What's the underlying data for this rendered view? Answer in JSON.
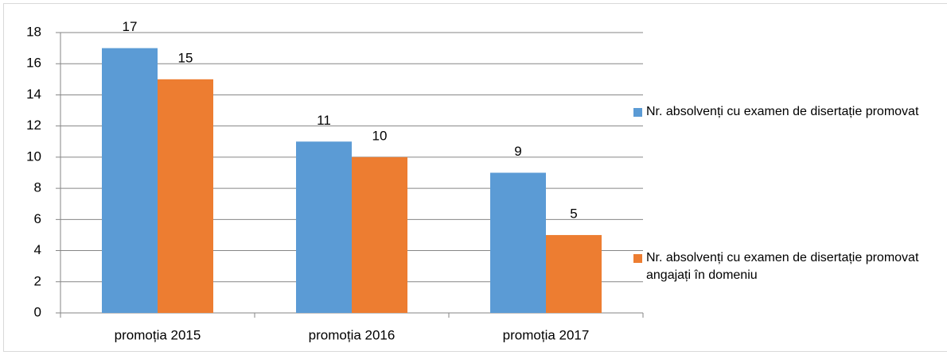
{
  "chart_data": {
    "type": "bar",
    "categories": [
      "promoția 2015",
      "promoția 2016",
      "promoția 2017"
    ],
    "series": [
      {
        "name": "Nr. absolvenți cu examen de disertație promovat",
        "color": "#5b9bd5",
        "values": [
          17,
          11,
          9
        ]
      },
      {
        "name": "Nr. absolvenți cu examen de disertație promovat angajați  în domeniu",
        "color": "#ed7d31",
        "values": [
          15,
          10,
          5
        ]
      }
    ],
    "ylim": [
      0,
      18
    ],
    "yticks": [
      0,
      2,
      4,
      6,
      8,
      10,
      12,
      14,
      16,
      18
    ],
    "grid": true,
    "legend": "right"
  }
}
